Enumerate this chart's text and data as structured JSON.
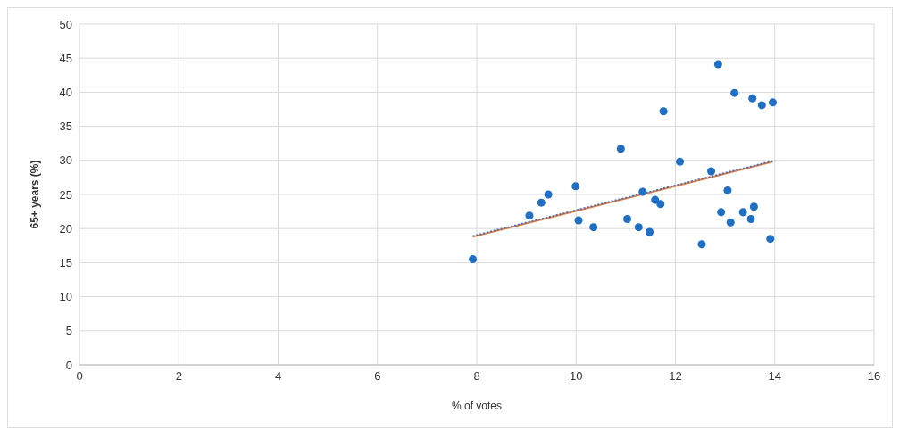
{
  "chart_data": {
    "type": "scatter",
    "xlabel": "% of votes",
    "ylabel": "65+ years (%)",
    "xlim": [
      0,
      16
    ],
    "xticks": [
      0,
      2,
      4,
      6,
      8,
      10,
      12,
      14,
      16
    ],
    "ylim": [
      0,
      50
    ],
    "yticks": [
      0,
      5,
      10,
      15,
      20,
      25,
      30,
      35,
      40,
      45,
      50
    ],
    "grid": true,
    "legend": false,
    "marker": "circle",
    "series": [
      {
        "color": "#1f6fc5",
        "x": [
          7.92,
          9.06,
          9.3,
          9.44,
          9.99,
          10.05,
          10.35,
          10.9,
          11.03,
          11.34,
          11.26,
          11.48,
          11.59,
          11.7,
          11.76,
          12.09,
          12.53,
          12.72,
          12.86,
          12.92,
          13.05,
          13.11,
          13.19,
          13.36,
          13.52,
          13.55,
          13.58,
          13.74,
          13.91,
          13.96
        ],
        "values": [
          15.5,
          21.9,
          23.8,
          25,
          26.2,
          21.2,
          20.2,
          31.7,
          21.4,
          25.4,
          20.2,
          19.5,
          24.2,
          23.6,
          37.2,
          29.8,
          17.7,
          28.4,
          44.1,
          22.4,
          25.6,
          20.9,
          39.9,
          22.4,
          21.4,
          39.1,
          23.2,
          38.1,
          18.5,
          38.5
        ]
      },
      {
        "type": "line",
        "color": "#ed7d31",
        "line_style": "solid",
        "marker": "none",
        "x": [
          7.92,
          13.96
        ],
        "values": [
          18.8,
          29.8
        ]
      },
      {
        "type": "line",
        "color": "#4472c4",
        "line_style": "dotted",
        "marker": "none",
        "x": [
          7.92,
          13.96
        ],
        "values": [
          18.9,
          29.9
        ]
      }
    ]
  }
}
